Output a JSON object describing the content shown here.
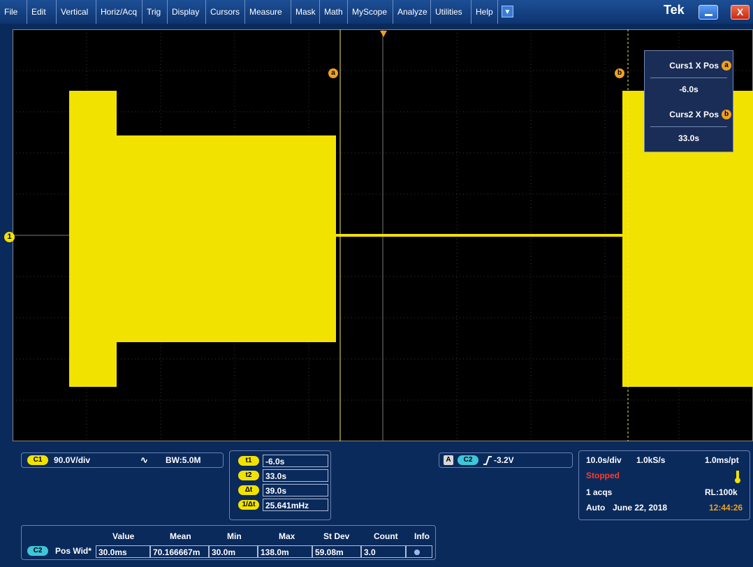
{
  "menu": [
    "File",
    "Edit",
    "Vertical",
    "Horiz/Acq",
    "Trig",
    "Display",
    "Cursors",
    "Measure",
    "Mask",
    "Math",
    "MyScope",
    "Analyze",
    "Utilities",
    "Help"
  ],
  "brand": "Tek",
  "window": {
    "close_label": "X"
  },
  "colors": {
    "trace": "#f2e200",
    "cursor": "#f0a020",
    "background": "#000000",
    "panel": "#0a2a5c"
  },
  "graticule": {
    "h_divisions": 10,
    "v_divisions": 10,
    "horizontal_scale": "10.0s/div"
  },
  "channel_marker": "1",
  "cursors": {
    "a": {
      "badge": "a",
      "position_s": -6.0
    },
    "b": {
      "badge": "b",
      "position_s": 33.0
    }
  },
  "cursor_readout": {
    "curs1_label": "Curs1 X Pos",
    "curs1_value": "-6.0s",
    "curs2_label": "Curs2 X Pos",
    "curs2_value": "33.0s",
    "curs1_badge": "a",
    "curs2_badge": "b"
  },
  "channel_panel": {
    "chip": "C1",
    "scale": "90.0V/div",
    "coupling_icon": "ac-coupling-icon",
    "bandwidth": "BW:5.0M"
  },
  "cursor_table": [
    {
      "chip": "t1",
      "value": "-6.0s"
    },
    {
      "chip": "t2",
      "value": "33.0s"
    },
    {
      "chip": "Δt",
      "value": "39.0s"
    },
    {
      "chip": "1/Δt",
      "value": "25.641mHz"
    }
  ],
  "trigger_panel": {
    "mode_chip": "A",
    "source_chip": "C2",
    "slope_icon": "rising-edge-icon",
    "level": "-3.2V"
  },
  "horizontal_panel": {
    "time_per_div": "10.0s/div",
    "sample_rate": "1.0kS/s",
    "resolution": "1.0ms/pt",
    "status": "Stopped",
    "acqs": "1 acqs",
    "record_length": "RL:100k",
    "trigger_mode": "Auto",
    "date": "June 22, 2018",
    "time": "12:44:26"
  },
  "measurement": {
    "headers": [
      "Value",
      "Mean",
      "Min",
      "Max",
      "St Dev",
      "Count",
      "Info"
    ],
    "chip": "C2",
    "name": "Pos Wid*",
    "values": [
      "30.0ms",
      "70.166667m",
      "30.0m",
      "138.0m",
      "59.08m",
      "3.0"
    ]
  }
}
